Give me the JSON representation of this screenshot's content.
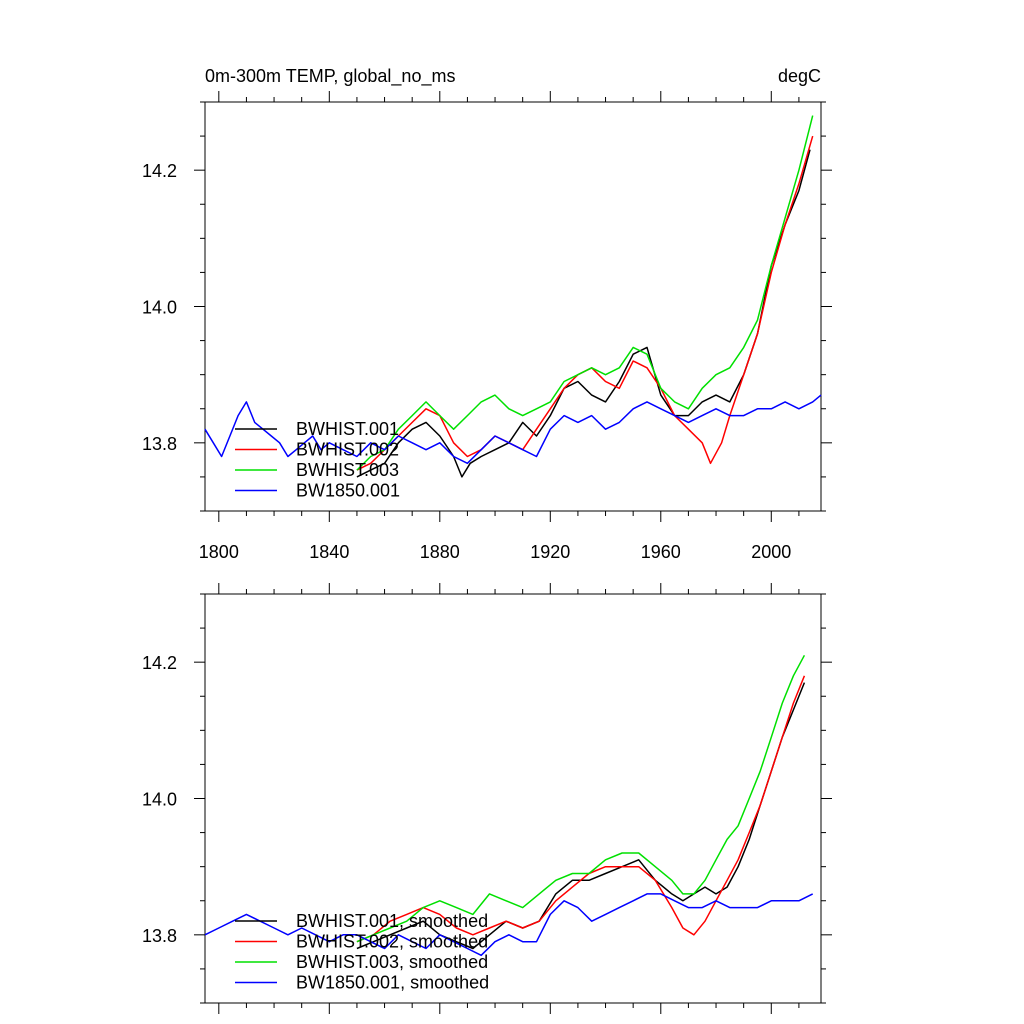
{
  "header": {
    "left_title": "0m-300m TEMP, global_no_ms",
    "right_title": "degC"
  },
  "colors": {
    "BWHIST.001": "#000000",
    "BWHIST.002": "#ff0000",
    "BWHIST.003": "#00e000",
    "BW1850.001": "#0000ff"
  },
  "chart_data": [
    {
      "type": "line",
      "xlim": [
        1795,
        2018
      ],
      "ylim": [
        13.7,
        14.3
      ],
      "xticks": [
        1800,
        1840,
        1880,
        1920,
        1960,
        2000
      ],
      "xtick_labels": [
        "1800",
        "1840",
        "1880",
        "1920",
        "1960",
        "2000"
      ],
      "yticks": [
        13.8,
        14.0,
        14.2
      ],
      "ytick_labels": [
        "13.8",
        "14.0",
        "14.2"
      ],
      "grid": false,
      "legend": "bottom-left",
      "series": [
        {
          "name": "BWHIST.001",
          "x": [
            1850,
            1855,
            1860,
            1865,
            1870,
            1875,
            1880,
            1885,
            1888,
            1891,
            1895,
            1900,
            1905,
            1910,
            1915,
            1920,
            1925,
            1930,
            1935,
            1940,
            1945,
            1950,
            1955,
            1960,
            1965,
            1970,
            1975,
            1980,
            1985,
            1990,
            1995,
            2000,
            2005,
            2010,
            2014
          ],
          "y": [
            13.75,
            13.76,
            13.77,
            13.8,
            13.82,
            13.83,
            13.81,
            13.78,
            13.75,
            13.77,
            13.78,
            13.79,
            13.8,
            13.83,
            13.81,
            13.84,
            13.88,
            13.89,
            13.87,
            13.86,
            13.89,
            13.93,
            13.94,
            13.87,
            13.84,
            13.84,
            13.86,
            13.87,
            13.86,
            13.9,
            13.96,
            14.06,
            14.12,
            14.17,
            14.23
          ]
        },
        {
          "name": "BWHIST.002",
          "x": [
            1850,
            1855,
            1860,
            1865,
            1870,
            1875,
            1880,
            1885,
            1890,
            1895,
            1900,
            1905,
            1910,
            1915,
            1920,
            1925,
            1930,
            1935,
            1940,
            1945,
            1950,
            1955,
            1960,
            1965,
            1970,
            1975,
            1978,
            1982,
            1985,
            1990,
            1995,
            2000,
            2005,
            2010,
            2015
          ],
          "y": [
            13.76,
            13.77,
            13.79,
            13.81,
            13.83,
            13.85,
            13.84,
            13.8,
            13.78,
            13.79,
            13.81,
            13.8,
            13.79,
            13.82,
            13.85,
            13.88,
            13.9,
            13.91,
            13.89,
            13.88,
            13.92,
            13.91,
            13.88,
            13.84,
            13.82,
            13.8,
            13.77,
            13.8,
            13.84,
            13.9,
            13.96,
            14.05,
            14.12,
            14.18,
            14.25
          ]
        },
        {
          "name": "BWHIST.003",
          "x": [
            1850,
            1855,
            1860,
            1865,
            1870,
            1875,
            1880,
            1885,
            1890,
            1895,
            1900,
            1905,
            1910,
            1915,
            1920,
            1925,
            1930,
            1935,
            1940,
            1945,
            1950,
            1955,
            1960,
            1965,
            1970,
            1975,
            1980,
            1985,
            1990,
            1995,
            2000,
            2005,
            2010,
            2015
          ],
          "y": [
            13.76,
            13.78,
            13.79,
            13.82,
            13.84,
            13.86,
            13.84,
            13.82,
            13.84,
            13.86,
            13.87,
            13.85,
            13.84,
            13.85,
            13.86,
            13.89,
            13.9,
            13.91,
            13.9,
            13.91,
            13.94,
            13.93,
            13.88,
            13.86,
            13.85,
            13.88,
            13.9,
            13.91,
            13.94,
            13.98,
            14.06,
            14.13,
            14.2,
            14.28
          ]
        },
        {
          "name": "BW1850.001",
          "x": [
            1795,
            1798,
            1801,
            1804,
            1807,
            1810,
            1813,
            1816,
            1819,
            1822,
            1825,
            1828,
            1831,
            1834,
            1837,
            1840,
            1845,
            1850,
            1855,
            1860,
            1865,
            1870,
            1875,
            1880,
            1885,
            1890,
            1895,
            1900,
            1905,
            1910,
            1915,
            1920,
            1925,
            1930,
            1935,
            1940,
            1945,
            1950,
            1955,
            1960,
            1965,
            1970,
            1975,
            1980,
            1985,
            1990,
            1995,
            2000,
            2005,
            2010,
            2015,
            2018
          ],
          "y": [
            13.82,
            13.8,
            13.78,
            13.81,
            13.84,
            13.86,
            13.83,
            13.82,
            13.81,
            13.8,
            13.78,
            13.79,
            13.8,
            13.81,
            13.79,
            13.8,
            13.79,
            13.78,
            13.8,
            13.79,
            13.81,
            13.8,
            13.79,
            13.8,
            13.78,
            13.77,
            13.79,
            13.81,
            13.8,
            13.79,
            13.78,
            13.82,
            13.84,
            13.83,
            13.84,
            13.82,
            13.83,
            13.85,
            13.86,
            13.85,
            13.84,
            13.83,
            13.84,
            13.85,
            13.84,
            13.84,
            13.85,
            13.85,
            13.86,
            13.85,
            13.86,
            13.87
          ]
        }
      ]
    },
    {
      "type": "line",
      "xlim": [
        1795,
        2018
      ],
      "ylim": [
        13.7,
        14.3
      ],
      "xticks": [
        1800,
        1840,
        1880,
        1920,
        1960,
        2000
      ],
      "yticks": [
        13.8,
        14.0,
        14.2
      ],
      "ytick_labels": [
        "13.8",
        "14.0",
        "14.2"
      ],
      "grid": false,
      "legend": "bottom-left",
      "series": [
        {
          "name": "BWHIST.001, smoothed",
          "x": [
            1850,
            1856,
            1862,
            1868,
            1874,
            1880,
            1886,
            1892,
            1898,
            1904,
            1910,
            1916,
            1922,
            1928,
            1934,
            1940,
            1946,
            1952,
            1958,
            1964,
            1968,
            1972,
            1976,
            1980,
            1984,
            1988,
            1992,
            1996,
            2000,
            2004,
            2008,
            2012
          ],
          "y": [
            13.78,
            13.79,
            13.8,
            13.81,
            13.82,
            13.8,
            13.79,
            13.78,
            13.8,
            13.82,
            13.81,
            13.82,
            13.86,
            13.88,
            13.88,
            13.89,
            13.9,
            13.91,
            13.88,
            13.86,
            13.85,
            13.86,
            13.87,
            13.86,
            13.87,
            13.9,
            13.94,
            13.99,
            14.04,
            14.09,
            14.13,
            14.17
          ]
        },
        {
          "name": "BWHIST.002, smoothed",
          "x": [
            1850,
            1856,
            1862,
            1868,
            1874,
            1880,
            1886,
            1892,
            1898,
            1904,
            1910,
            1916,
            1922,
            1928,
            1934,
            1940,
            1946,
            1952,
            1958,
            1964,
            1968,
            1972,
            1976,
            1980,
            1984,
            1988,
            1992,
            1996,
            2000,
            2004,
            2008,
            2012
          ],
          "y": [
            13.79,
            13.8,
            13.82,
            13.83,
            13.84,
            13.83,
            13.81,
            13.8,
            13.81,
            13.82,
            13.81,
            13.82,
            13.85,
            13.87,
            13.89,
            13.9,
            13.9,
            13.9,
            13.88,
            13.84,
            13.81,
            13.8,
            13.82,
            13.85,
            13.88,
            13.91,
            13.95,
            13.99,
            14.04,
            14.09,
            14.14,
            14.18
          ]
        },
        {
          "name": "BWHIST.003, smoothed",
          "x": [
            1850,
            1856,
            1862,
            1868,
            1874,
            1880,
            1886,
            1892,
            1898,
            1904,
            1910,
            1916,
            1922,
            1928,
            1934,
            1940,
            1946,
            1952,
            1958,
            1964,
            1968,
            1972,
            1976,
            1980,
            1984,
            1988,
            1992,
            1996,
            2000,
            2004,
            2008,
            2012
          ],
          "y": [
            13.79,
            13.8,
            13.81,
            13.82,
            13.84,
            13.85,
            13.84,
            13.83,
            13.86,
            13.85,
            13.84,
            13.86,
            13.88,
            13.89,
            13.89,
            13.91,
            13.92,
            13.92,
            13.9,
            13.88,
            13.86,
            13.86,
            13.88,
            13.91,
            13.94,
            13.96,
            14.0,
            14.04,
            14.09,
            14.14,
            14.18,
            14.21
          ]
        },
        {
          "name": "BW1850.001, smoothed",
          "x": [
            1795,
            1800,
            1805,
            1810,
            1815,
            1820,
            1825,
            1830,
            1835,
            1840,
            1845,
            1850,
            1855,
            1860,
            1865,
            1870,
            1875,
            1880,
            1885,
            1890,
            1895,
            1900,
            1905,
            1910,
            1915,
            1920,
            1925,
            1930,
            1935,
            1940,
            1945,
            1950,
            1955,
            1960,
            1965,
            1970,
            1975,
            1980,
            1985,
            1990,
            1995,
            2000,
            2005,
            2010,
            2015
          ],
          "y": [
            13.8,
            13.81,
            13.82,
            13.83,
            13.82,
            13.81,
            13.8,
            13.81,
            13.8,
            13.79,
            13.8,
            13.8,
            13.79,
            13.78,
            13.8,
            13.79,
            13.78,
            13.8,
            13.79,
            13.78,
            13.77,
            13.79,
            13.8,
            13.79,
            13.79,
            13.83,
            13.85,
            13.84,
            13.82,
            13.83,
            13.84,
            13.85,
            13.86,
            13.86,
            13.85,
            13.84,
            13.84,
            13.85,
            13.84,
            13.84,
            13.84,
            13.85,
            13.85,
            13.85,
            13.86
          ]
        }
      ]
    }
  ]
}
